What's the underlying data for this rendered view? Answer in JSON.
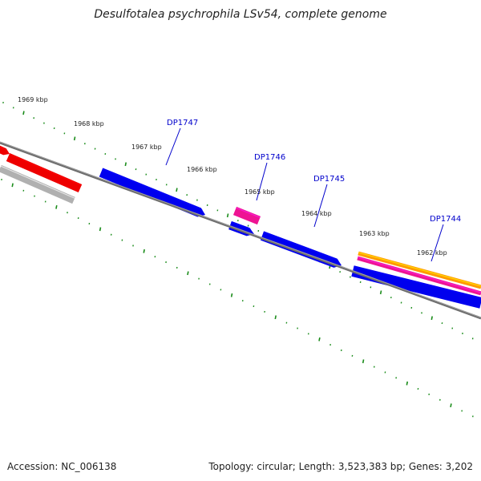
{
  "title": "Desulfotalea psychrophila LSv54, complete genome",
  "footer": {
    "accession": "Accession: NC_006138",
    "summary": "Topology: circular; Length: 3,523,383 bp; Genes: 3,202"
  },
  "colors": {
    "backbone": "#808080",
    "tick": "#1a8c1a",
    "gene_label": "#0000cc",
    "forward_cds": "#0000ee",
    "red_feature": "#ee0000",
    "grey_feature": "#b0b0b0",
    "pink_feature": "#ee1493",
    "orange_feature": "#ff9900"
  },
  "ruler": {
    "labels": [
      "1969 kbp",
      "1968 kbp",
      "1967 kbp",
      "1966 kbp",
      "1965 kbp",
      "1964 kbp",
      "1963 kbp",
      "1962 kbp"
    ]
  },
  "genes": [
    {
      "label": "DP1747"
    },
    {
      "label": "DP1746"
    },
    {
      "label": "DP1745"
    },
    {
      "label": "DP1744"
    }
  ]
}
